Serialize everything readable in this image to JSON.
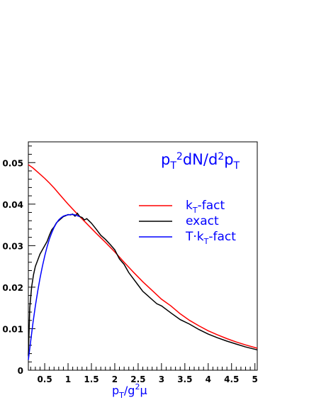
{
  "chart_data": {
    "type": "line",
    "title": "pT2dN/d2pT",
    "xlabel": "pT/g2μ",
    "ylabel": "",
    "xlim": [
      0.15,
      5.05
    ],
    "ylim": [
      0,
      0.055
    ],
    "xticks": [
      0.5,
      1,
      1.5,
      2,
      2.5,
      3,
      3.5,
      4,
      4.5,
      5
    ],
    "xtick_labels": [
      "0.5",
      "1",
      "1.5",
      "2",
      "2.5",
      "3",
      "3.5",
      "4",
      "4.5",
      "5"
    ],
    "yticks": [
      0,
      0.01,
      0.02,
      0.03,
      0.04,
      0.05
    ],
    "ytick_labels": [
      "0",
      "0.01",
      "0.02",
      "0.03",
      "0.04",
      "0.05"
    ],
    "grid": false,
    "legend": "right",
    "series": [
      {
        "name": "kT-fact",
        "color": "#ff0000",
        "x": [
          0.15,
          0.25,
          0.35,
          0.5,
          0.6,
          0.7,
          0.8,
          0.9,
          1.0,
          1.1,
          1.2,
          1.4,
          1.6,
          1.8,
          2.0,
          2.2,
          2.4,
          2.6,
          2.8,
          3.0,
          3.2,
          3.4,
          3.6,
          3.8,
          4.0,
          4.2,
          4.4,
          4.6,
          4.8,
          5.05
        ],
        "y": [
          0.0495,
          0.0487,
          0.0477,
          0.0462,
          0.0451,
          0.0439,
          0.0426,
          0.0413,
          0.04,
          0.0388,
          0.0376,
          0.0353,
          0.033,
          0.0308,
          0.0285,
          0.026,
          0.0236,
          0.0213,
          0.0192,
          0.0171,
          0.0155,
          0.0136,
          0.012,
          0.0107,
          0.0095,
          0.0085,
          0.0076,
          0.0068,
          0.0061,
          0.0053
        ]
      },
      {
        "name": "exact",
        "color": "#000000",
        "x": [
          0.15,
          0.18,
          0.22,
          0.26,
          0.3,
          0.35,
          0.4,
          0.45,
          0.5,
          0.55,
          0.6,
          0.65,
          0.7,
          0.75,
          0.8,
          0.85,
          0.9,
          0.95,
          1.0,
          1.05,
          1.1,
          1.15,
          1.2,
          1.25,
          1.3,
          1.35,
          1.4,
          1.5,
          1.6,
          1.7,
          1.8,
          1.9,
          2.0,
          2.1,
          2.2,
          2.3,
          2.4,
          2.5,
          2.6,
          2.7,
          2.8,
          2.9,
          3.0,
          3.2,
          3.4,
          3.6,
          3.8,
          4.0,
          4.2,
          4.4,
          4.6,
          4.8,
          5.05
        ],
        "y": [
          0.0035,
          0.015,
          0.02,
          0.023,
          0.025,
          0.0265,
          0.028,
          0.029,
          0.03,
          0.031,
          0.0325,
          0.0338,
          0.0345,
          0.0355,
          0.036,
          0.0365,
          0.037,
          0.0372,
          0.0375,
          0.0374,
          0.0376,
          0.0371,
          0.0378,
          0.037,
          0.0368,
          0.0362,
          0.0365,
          0.0354,
          0.034,
          0.0325,
          0.0315,
          0.0303,
          0.029,
          0.0268,
          0.0255,
          0.0235,
          0.022,
          0.0205,
          0.019,
          0.018,
          0.017,
          0.016,
          0.0155,
          0.0138,
          0.0122,
          0.0111,
          0.0098,
          0.0087,
          0.0078,
          0.007,
          0.0063,
          0.0056,
          0.0049
        ]
      },
      {
        "name": "T·kT-fact",
        "color": "#0000ff",
        "x": [
          0.15,
          0.2,
          0.25,
          0.3,
          0.35,
          0.4,
          0.45,
          0.5,
          0.55,
          0.6,
          0.65,
          0.7,
          0.75,
          0.8,
          0.85,
          0.9,
          0.95,
          1.0,
          1.05,
          1.1,
          1.15,
          1.2,
          1.25
        ],
        "y": [
          0.0025,
          0.007,
          0.0115,
          0.0155,
          0.019,
          0.0222,
          0.025,
          0.0275,
          0.0297,
          0.0316,
          0.0331,
          0.0344,
          0.0354,
          0.0362,
          0.0367,
          0.0371,
          0.0373,
          0.0374,
          0.0375,
          0.0375,
          0.0374,
          0.0372,
          0.037
        ]
      }
    ]
  }
}
